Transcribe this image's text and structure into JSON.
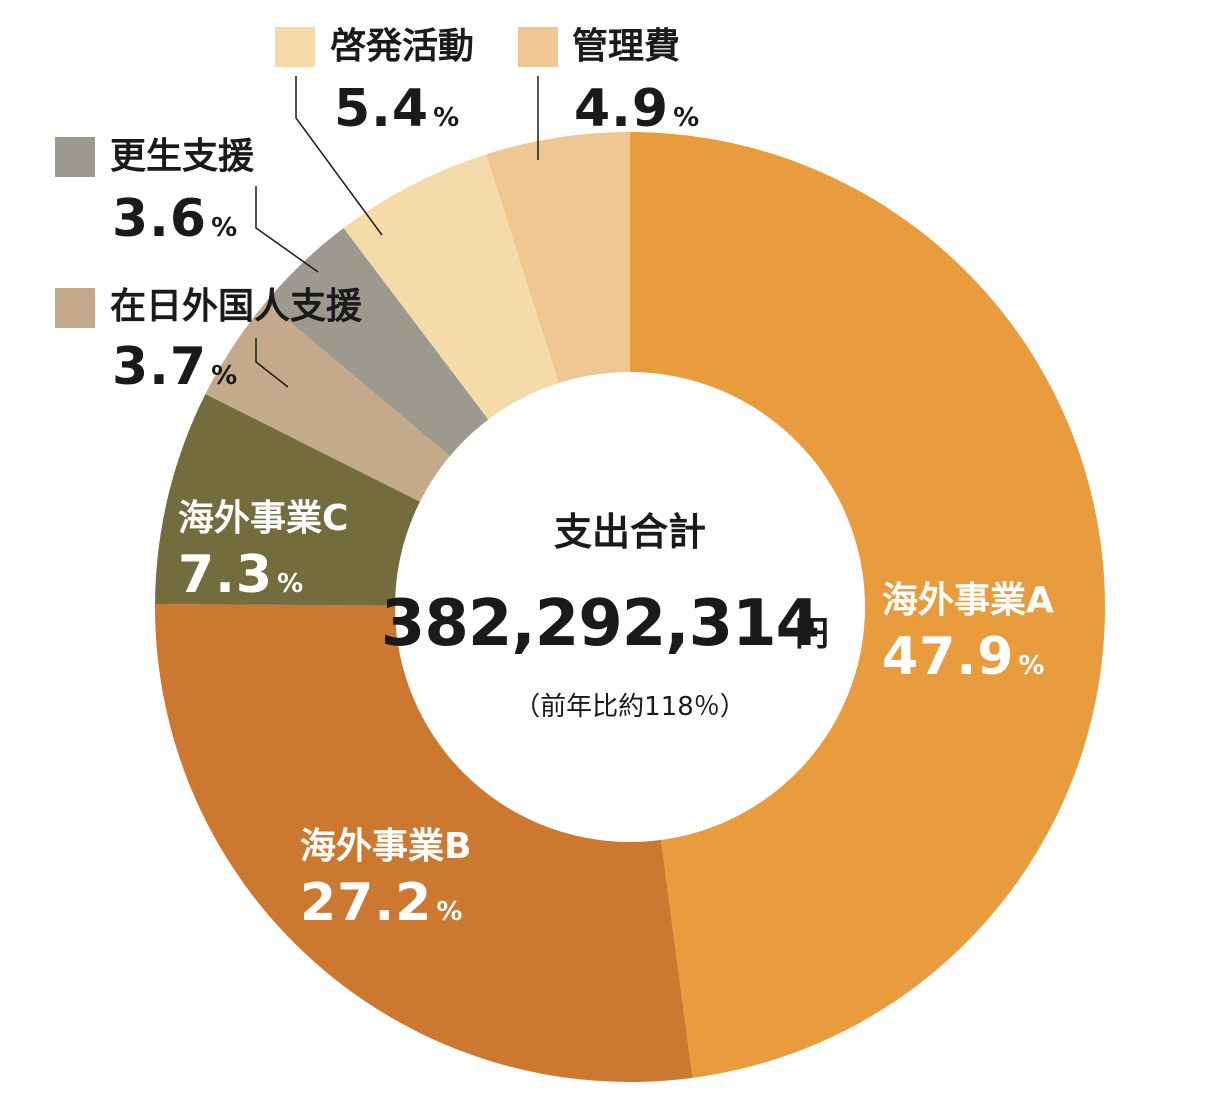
{
  "chart_data": {
    "type": "pie",
    "center": {
      "title": "支出合計",
      "total": "382,292,314",
      "unit": "円",
      "note": "（前年比約118％）"
    },
    "slices": [
      {
        "name": "海外事業A",
        "percent": "47.9",
        "value": 47.9,
        "color": "#E89C3E"
      },
      {
        "name": "海外事業B",
        "percent": "27.2",
        "value": 27.2,
        "color": "#CC7830"
      },
      {
        "name": "海外事業C",
        "percent": "7.3",
        "value": 7.3,
        "color": "#736C3C"
      },
      {
        "name": "在日外国人支援",
        "percent": "3.7",
        "value": 3.7,
        "color": "#C4A98A"
      },
      {
        "name": "更生支援",
        "percent": "3.6",
        "value": 3.6,
        "color": "#9C9A8E"
      },
      {
        "name": "啓発活動",
        "percent": "5.4",
        "value": 5.4,
        "color": "#F6DBAA"
      },
      {
        "name": "管理費",
        "percent": "4.9",
        "value": 4.9,
        "color": "#EEC792"
      }
    ],
    "percent_symbol": "%"
  }
}
